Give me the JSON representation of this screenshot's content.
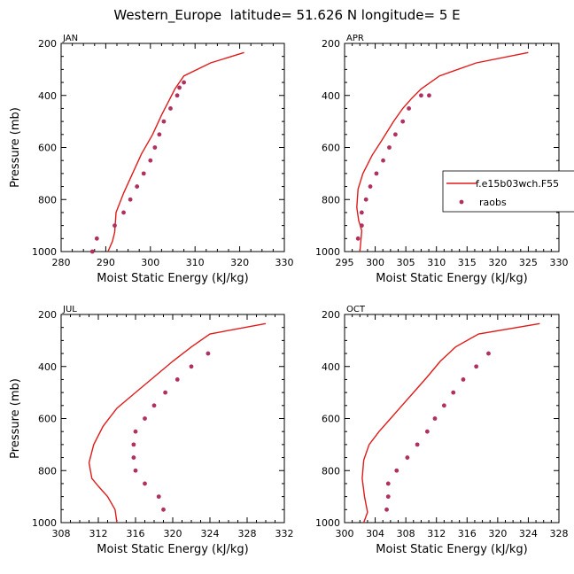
{
  "title": "Western_Europe  latitude= 51.626 N longitude= 5 E",
  "legend": {
    "model_label": "f.e15b03wch.F55",
    "obs_label": "raobs"
  },
  "colors": {
    "model": "#e01a1a",
    "obs": "#b03060"
  },
  "chart_data": [
    {
      "type": "line",
      "panel": "JAN",
      "xlabel": "Moist Static Energy (kJ/kg)",
      "ylabel": "Pressure (mb)",
      "xlim": [
        280,
        330
      ],
      "xticks": [
        280,
        290,
        300,
        310,
        320,
        330
      ],
      "ylim": [
        1000,
        200
      ],
      "yticks": [
        200,
        400,
        600,
        800,
        1000
      ],
      "series": [
        {
          "name": "f.e15b03wch.F55",
          "kind": "line",
          "x": [
            290.5,
            291.5,
            292.0,
            292.3,
            294.0,
            296.0,
            298.0,
            300.5,
            302.5,
            304.0,
            305.5,
            307.5,
            313.5,
            321.0
          ],
          "y": [
            1000,
            960,
            925,
            850,
            775,
            700,
            625,
            550,
            475,
            425,
            375,
            325,
            275,
            235
          ]
        },
        {
          "name": "raobs",
          "kind": "points",
          "x": [
            287.0,
            288.0,
            292.0,
            294.0,
            295.5,
            297.0,
            298.5,
            300.0,
            301.0,
            302.0,
            303.0,
            304.5,
            306.0,
            306.5,
            307.5
          ],
          "y": [
            1000,
            950,
            900,
            850,
            800,
            750,
            700,
            650,
            600,
            550,
            500,
            450,
            400,
            370,
            350
          ]
        }
      ]
    },
    {
      "type": "line",
      "panel": "APR",
      "xlabel": "Moist Static Energy (kJ/kg)",
      "ylabel": "",
      "xlim": [
        295,
        330
      ],
      "xticks": [
        295,
        300,
        305,
        310,
        315,
        320,
        325,
        330
      ],
      "ylim": [
        1000,
        200
      ],
      "yticks": [
        200,
        400,
        600,
        800,
        1000
      ],
      "series": [
        {
          "name": "f.e15b03wch.F55",
          "kind": "line",
          "x": [
            297.5,
            297.8,
            297.3,
            297.0,
            297.2,
            298.0,
            299.5,
            301.0,
            303.0,
            304.5,
            306.0,
            307.5,
            310.5,
            316.5,
            325.0
          ],
          "y": [
            1000,
            920,
            880,
            830,
            760,
            700,
            630,
            575,
            500,
            450,
            410,
            375,
            325,
            275,
            235
          ]
        },
        {
          "name": "raobs",
          "kind": "points",
          "x": [
            297.2,
            297.8,
            297.8,
            298.5,
            299.2,
            300.2,
            301.3,
            302.3,
            303.3,
            304.5,
            305.5,
            307.5,
            308.8
          ],
          "y": [
            950,
            900,
            850,
            800,
            750,
            700,
            650,
            600,
            550,
            500,
            450,
            400,
            400
          ]
        }
      ]
    },
    {
      "type": "line",
      "panel": "JUL",
      "xlabel": "Moist Static Energy (kJ/kg)",
      "ylabel": "Pressure (mb)",
      "xlim": [
        308,
        332
      ],
      "xticks": [
        308,
        312,
        316,
        320,
        324,
        328,
        332
      ],
      "ylim": [
        1000,
        200
      ],
      "yticks": [
        200,
        400,
        600,
        800,
        1000
      ],
      "series": [
        {
          "name": "f.e15b03wch.F55",
          "kind": "line",
          "x": [
            314.0,
            313.8,
            313.0,
            312.0,
            311.3,
            311.0,
            311.5,
            312.5,
            314.0,
            316.0,
            318.0,
            320.0,
            322.0,
            324.0,
            330.0
          ],
          "y": [
            1000,
            950,
            900,
            860,
            830,
            770,
            700,
            630,
            560,
            500,
            440,
            380,
            325,
            275,
            235
          ]
        },
        {
          "name": "raobs",
          "kind": "points",
          "x": [
            319.0,
            318.5,
            317.0,
            316.0,
            315.8,
            315.8,
            316.0,
            317.0,
            318.0,
            319.2,
            320.5,
            322.0,
            323.8
          ],
          "y": [
            950,
            900,
            850,
            800,
            750,
            700,
            650,
            600,
            550,
            500,
            450,
            400,
            350
          ]
        }
      ]
    },
    {
      "type": "line",
      "panel": "OCT",
      "xlabel": "Moist Static Energy (kJ/kg)",
      "ylabel": "",
      "xlim": [
        300,
        328
      ],
      "xticks": [
        300,
        304,
        308,
        312,
        316,
        320,
        324,
        328
      ],
      "ylim": [
        1000,
        200
      ],
      "yticks": [
        200,
        400,
        600,
        800,
        1000
      ],
      "series": [
        {
          "name": "f.e15b03wch.F55",
          "kind": "line",
          "x": [
            302.5,
            303.0,
            302.6,
            302.3,
            302.5,
            303.2,
            304.5,
            306.0,
            307.5,
            309.0,
            310.8,
            312.5,
            314.5,
            317.5,
            325.5
          ],
          "y": [
            1000,
            960,
            900,
            830,
            760,
            700,
            650,
            600,
            550,
            500,
            440,
            380,
            325,
            275,
            235
          ]
        },
        {
          "name": "raobs",
          "kind": "points",
          "x": [
            305.5,
            305.7,
            305.7,
            306.8,
            308.2,
            309.5,
            310.8,
            311.8,
            313.0,
            314.2,
            315.5,
            317.2,
            318.8
          ],
          "y": [
            950,
            900,
            850,
            800,
            750,
            700,
            650,
            600,
            550,
            500,
            450,
            400,
            350
          ]
        }
      ]
    }
  ]
}
